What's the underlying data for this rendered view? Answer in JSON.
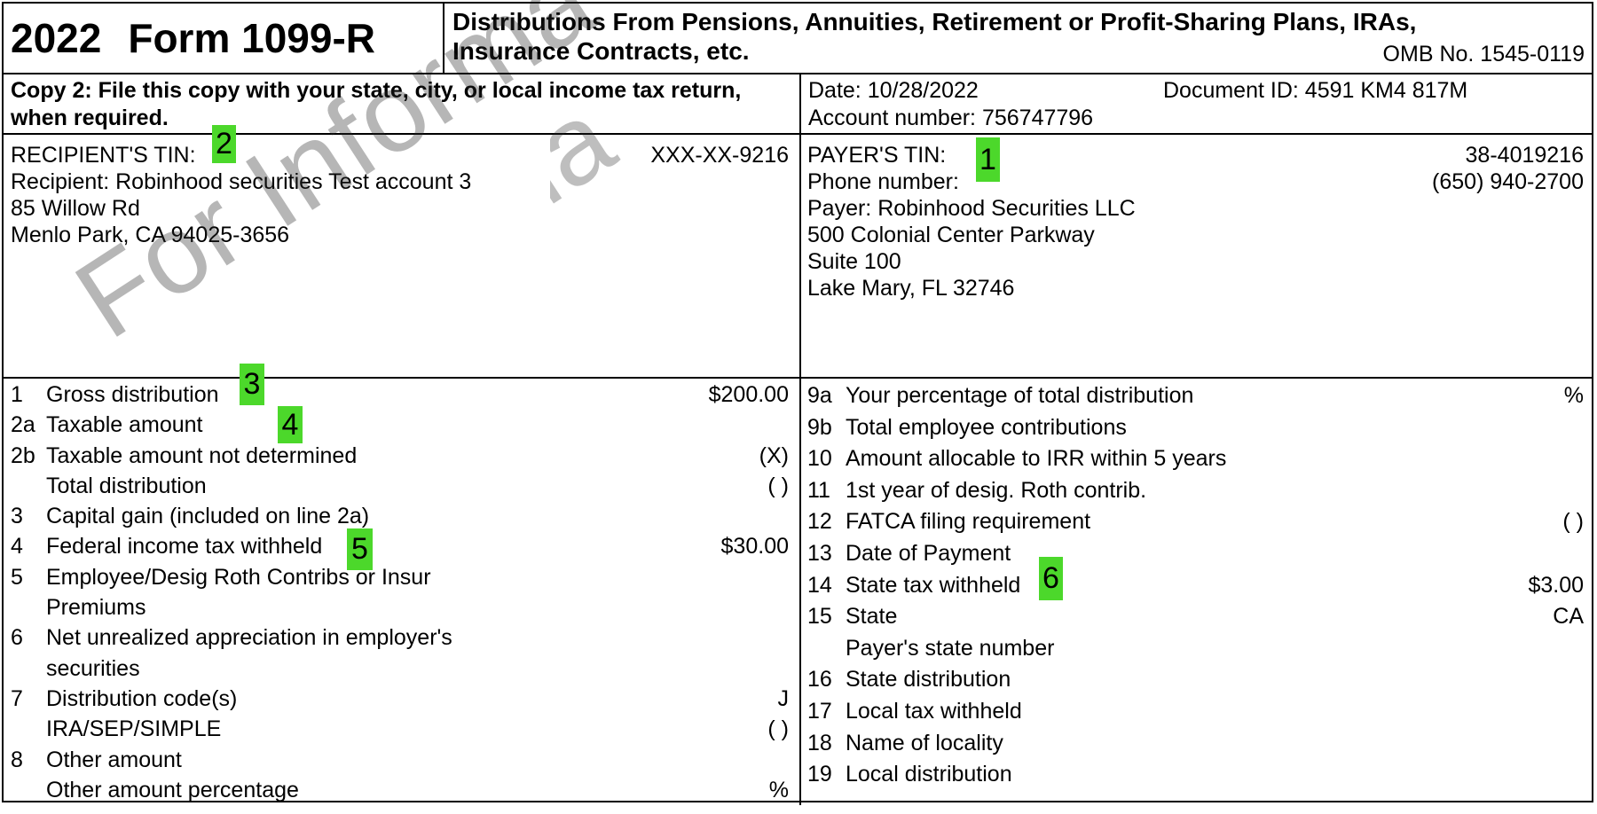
{
  "header": {
    "year": "2022",
    "form_name": "Form 1099-R",
    "title_line1": "Distributions From Pensions, Annuities, Retirement or Profit-Sharing Plans, IRAs,",
    "title_line2": "Insurance Contracts, etc.",
    "omb": "OMB No. 1545-0119"
  },
  "copy_notice": {
    "line1": "Copy 2: File this copy with your state, city, or local income tax return,",
    "line2": "when required."
  },
  "meta": {
    "date_label": "Date:",
    "date_value": "10/28/2022",
    "document_id_label": "Document ID:",
    "document_id_value": "4591 KM4 817M",
    "account_label": "Account number:",
    "account_value": "756747796"
  },
  "recipient": {
    "tin_label": "RECIPIENT'S TIN:",
    "tin_value": "XXX-XX-9216",
    "name": "Recipient: Robinhood securities Test account 3",
    "address_line1": "85 Willow Rd",
    "address_line2": "Menlo Park, CA 94025-3656"
  },
  "payer": {
    "tin_label": "PAYER'S TIN:",
    "tin_value": "38-4019216",
    "phone_label": "Phone number:",
    "phone_value": "(650) 940-2700",
    "name": "Payer: Robinhood Securities LLC",
    "address_line1": "500 Colonial Center Parkway",
    "address_line2": "Suite 100",
    "address_line3": "Lake Mary, FL 32746"
  },
  "boxes_left": [
    {
      "num": "1",
      "label": "Gross distribution",
      "value": "$200.00"
    },
    {
      "num": "2a",
      "label": "Taxable amount",
      "value": ""
    },
    {
      "num": "2b",
      "label": "Taxable amount not determined",
      "value": "(X)"
    },
    {
      "num": "",
      "label": "Total distribution",
      "value": "( )"
    },
    {
      "num": "3",
      "label": "Capital gain (included on line 2a)",
      "value": ""
    },
    {
      "num": "4",
      "label": "Federal income tax withheld",
      "value": "$30.00"
    },
    {
      "num": "5",
      "label": "Employee/Desig Roth Contribs or Insur",
      "value": ""
    },
    {
      "num": "",
      "label": "Premiums",
      "value": ""
    },
    {
      "num": "6",
      "label": "Net unrealized appreciation in employer's",
      "value": ""
    },
    {
      "num": "",
      "label": "securities",
      "value": ""
    },
    {
      "num": "7",
      "label": "Distribution code(s)",
      "value": "J"
    },
    {
      "num": "",
      "label": "IRA/SEP/SIMPLE",
      "value": "( )"
    },
    {
      "num": "8",
      "label": "Other amount",
      "value": ""
    },
    {
      "num": "",
      "label": "Other amount percentage",
      "value": "%"
    }
  ],
  "boxes_right": [
    {
      "num": "9a",
      "label": "Your percentage of total distribution",
      "value": "%"
    },
    {
      "num": "9b",
      "label": "Total employee contributions",
      "value": ""
    },
    {
      "num": "10",
      "label": "Amount allocable to IRR within 5 years",
      "value": ""
    },
    {
      "num": "11",
      "label": "1st year of desig. Roth contrib.",
      "value": ""
    },
    {
      "num": "12",
      "label": "FATCA filing requirement",
      "value": "( )"
    },
    {
      "num": "13",
      "label": "Date of Payment",
      "value": ""
    },
    {
      "num": "14",
      "label": "State tax withheld",
      "value": "$3.00"
    },
    {
      "num": "15",
      "label": "State",
      "value": "CA"
    },
    {
      "num": "",
      "label": "Payer's state number",
      "value": ""
    },
    {
      "num": "16",
      "label": "State distribution",
      "value": ""
    },
    {
      "num": "17",
      "label": "Local tax withheld",
      "value": ""
    },
    {
      "num": "18",
      "label": "Name of locality",
      "value": ""
    },
    {
      "num": "19",
      "label": "Local distribution",
      "value": ""
    }
  ],
  "highlights": [
    {
      "label": "1"
    },
    {
      "label": "2"
    },
    {
      "label": "3"
    },
    {
      "label": "4"
    },
    {
      "label": "5"
    },
    {
      "label": "6"
    }
  ],
  "watermark": {
    "text": "For Informa"
  },
  "colors": {
    "highlight_green": "#4cd82b",
    "watermark_gray": "#8c8c8c",
    "border_black": "#000000"
  }
}
